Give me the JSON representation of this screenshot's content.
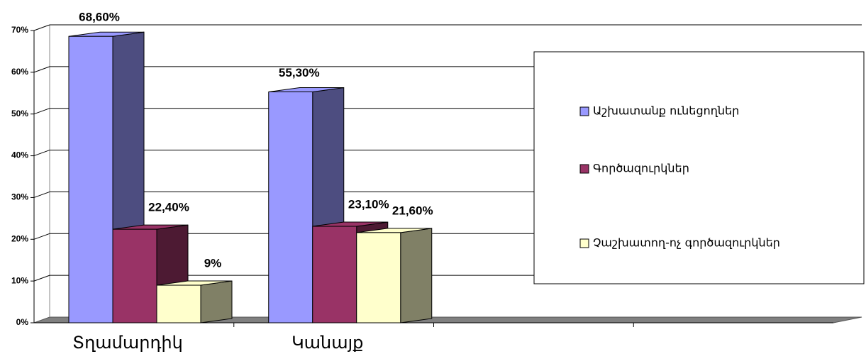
{
  "chart_data": {
    "type": "bar3d",
    "categories": [
      "Տղամարդիկ",
      "Կանայք",
      null,
      null
    ],
    "series": [
      {
        "name": "Աշխատանք ունեցողներ",
        "color": "#9999ff",
        "side": "#4d4d80",
        "values": [
          68.6,
          55.3,
          null,
          null
        ],
        "value_labels": [
          "68,60%",
          "55,30%",
          null,
          null
        ]
      },
      {
        "name": "Գործազուրկներ",
        "color": "#993366",
        "side": "#4d1a33",
        "values": [
          22.4,
          23.1,
          null,
          null
        ],
        "value_labels": [
          "22,40%",
          "23,10%",
          null,
          null
        ]
      },
      {
        "name": "Չաշխատող-ոչ գործազուրկներ",
        "color": "#ffffcc",
        "side": "#808066",
        "values": [
          9,
          21.6,
          null,
          null
        ],
        "value_labels": [
          "9%",
          "21,60%",
          null,
          null
        ]
      }
    ],
    "ylim": [
      0,
      70
    ],
    "yticks": [
      {
        "value": 0,
        "label": "0%"
      },
      {
        "value": 10,
        "label": "10%"
      },
      {
        "value": 20,
        "label": "20%"
      },
      {
        "value": 30,
        "label": "30%"
      },
      {
        "value": 40,
        "label": "40%"
      },
      {
        "value": 50,
        "label": "50%"
      },
      {
        "value": 60,
        "label": "60%"
      },
      {
        "value": 70,
        "label": "70%"
      }
    ],
    "grid": true,
    "legend": "right"
  }
}
